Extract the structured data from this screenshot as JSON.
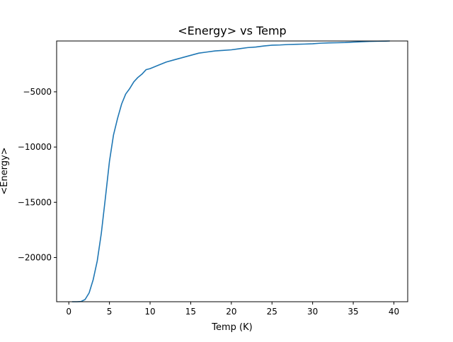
{
  "chart_data": {
    "type": "line",
    "title": "<Energy> vs Temp",
    "xlabel": "Temp (K)",
    "ylabel": "<Energy>",
    "xlim": [
      -1.5,
      41.7
    ],
    "ylim": [
      -24000,
      -400
    ],
    "xticks": [
      0,
      5,
      10,
      15,
      20,
      25,
      30,
      35,
      40
    ],
    "xtick_labels": [
      "0",
      "5",
      "10",
      "15",
      "20",
      "25",
      "30",
      "35",
      "40"
    ],
    "yticks": [
      -5000,
      -10000,
      -15000,
      -20000
    ],
    "ytick_labels": [
      "−5000",
      "−10000",
      "−15000",
      "−20000"
    ],
    "grid": false,
    "legend": "none",
    "line_color": "#1f77b4",
    "series": [
      {
        "x": [
          0.4,
          1.0,
          1.5,
          2.0,
          2.5,
          3.0,
          3.5,
          4.0,
          4.5,
          5.0,
          5.5,
          6.0,
          6.5,
          7.0,
          7.5,
          8.0,
          8.5,
          9.0,
          9.5,
          10.0,
          11.0,
          12.0,
          13.0,
          14.0,
          15.0,
          16.0,
          17.0,
          18.0,
          19.0,
          20.0,
          21.0,
          22.0,
          23.0,
          24.0,
          25.0,
          26.0,
          27.0,
          28.0,
          29.0,
          30.0,
          31.0,
          32.0,
          33.0,
          34.0,
          35.0,
          36.0,
          37.0,
          38.0,
          39.0,
          39.5
        ],
        "y": [
          -24000,
          -24000,
          -23980,
          -23800,
          -23200,
          -22000,
          -20300,
          -17800,
          -14600,
          -11300,
          -8900,
          -7400,
          -6100,
          -5200,
          -4700,
          -4100,
          -3700,
          -3400,
          -3000,
          -2900,
          -2600,
          -2300,
          -2100,
          -1900,
          -1700,
          -1500,
          -1400,
          -1300,
          -1250,
          -1200,
          -1100,
          -1000,
          -950,
          -850,
          -780,
          -760,
          -720,
          -700,
          -680,
          -650,
          -600,
          -570,
          -560,
          -540,
          -500,
          -470,
          -440,
          -420,
          -410,
          -400
        ]
      }
    ]
  }
}
